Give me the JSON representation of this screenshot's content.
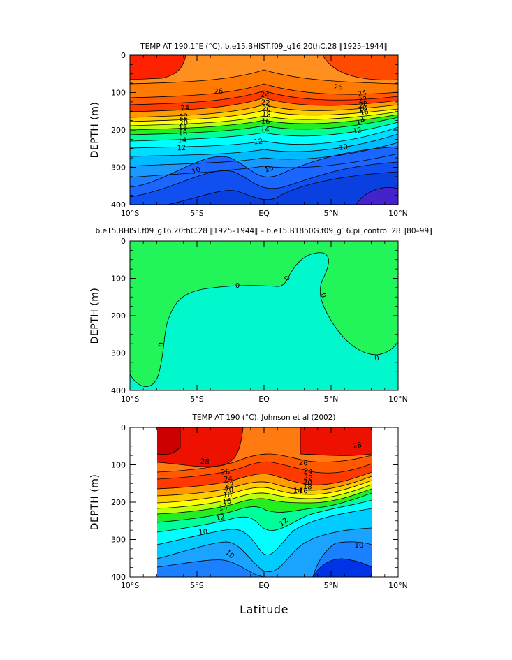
{
  "figure": {
    "xlabel": "Latitude"
  },
  "chart_data": [
    {
      "type": "heatmap",
      "title": "TEMP AT 190.1°E (°C), b.e15.BHIST.f09_g16.20thC.28 ‖1925–1944‖",
      "ylabel": "DEPTH (m)",
      "xlim": [
        -10,
        10
      ],
      "ylim": [
        400,
        0
      ],
      "x_ticks": [
        "10°S",
        "5°S",
        "EQ",
        "5°N",
        "10°N"
      ],
      "y_ticks": [
        "0",
        "100",
        "200",
        "300",
        "400"
      ],
      "contour_labels": [
        "26",
        "26",
        "24",
        "24",
        "24",
        "22",
        "22",
        "22",
        "20",
        "20",
        "20",
        "18",
        "18",
        "18",
        "16",
        "16",
        "16",
        "14",
        "14",
        "14",
        "12",
        "12",
        "12",
        "10",
        "10",
        "10"
      ],
      "colors": {
        "warm": "#ff2a00",
        "orange": "#ff8c1a",
        "yellow": "#ffff00",
        "green": "#22ee22",
        "cyan": "#00ffff",
        "blue": "#1a73ff",
        "deep": "#0033e6",
        "violet": "#4422cc"
      }
    },
    {
      "type": "heatmap",
      "title": "b.e15.BHIST.f09_g16.20thC.28 ‖1925–1944‖ – b.e15.B1850G.f09_g16.pi_control.28 ‖80–99‖",
      "ylabel": "DEPTH (m)",
      "xlim": [
        -10,
        10
      ],
      "ylim": [
        400,
        0
      ],
      "x_ticks": [
        "10°S",
        "5°S",
        "EQ",
        "5°N",
        "10°N"
      ],
      "y_ticks": [
        "0",
        "100",
        "200",
        "300",
        "400"
      ],
      "contour_labels": [
        "0",
        "0",
        "0",
        "0",
        "0"
      ],
      "colors": {
        "upper": "#22f55a",
        "lower": "#00f8cc"
      }
    },
    {
      "type": "heatmap",
      "title": "TEMP AT 190 (°C), Johnson et al (2002)",
      "ylabel": "DEPTH (m)",
      "xlim": [
        -10,
        10
      ],
      "ylim": [
        400,
        0
      ],
      "data_xlim": [
        -8,
        8
      ],
      "x_ticks": [
        "10°S",
        "5°S",
        "EQ",
        "5°N",
        "10°N"
      ],
      "y_ticks": [
        "0",
        "100",
        "200",
        "300",
        "400"
      ],
      "contour_labels": [
        "28",
        "28",
        "26",
        "26",
        "24",
        "24",
        "22",
        "22",
        "20",
        "20",
        "18",
        "18",
        "16",
        "16",
        "14",
        "14",
        "12",
        "12",
        "10",
        "10",
        "10"
      ],
      "colors": {
        "warm": "#ee1100",
        "orange": "#ff8c1a",
        "yellow": "#ffff00",
        "green": "#22ee22",
        "cyan": "#00ffff",
        "blue": "#1a80ff",
        "deep": "#0033e6"
      }
    }
  ]
}
